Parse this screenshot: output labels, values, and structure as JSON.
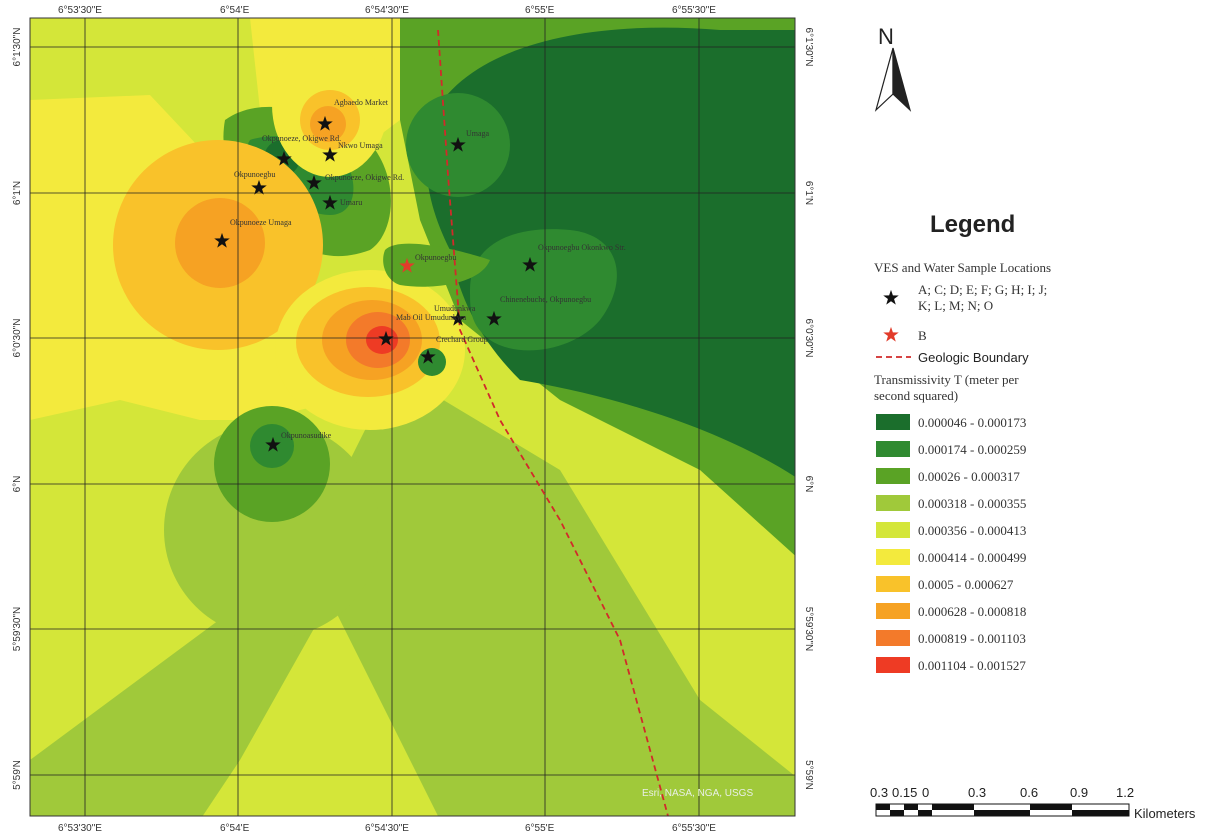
{
  "map": {
    "attribution": "Esri, NASA, NGA, USGS",
    "top_longitude_labels": [
      "6°53'30\"E",
      "6°54'E",
      "6°54'30\"E",
      "6°55'E",
      "6°55'30\"E"
    ],
    "bottom_longitude_labels": [
      "6°53'30\"E",
      "6°54'E",
      "6°54'30\"E",
      "6°55'E",
      "6°55'30\"E"
    ],
    "latitude_labels": [
      "6°1'30\"N",
      "6°1'N",
      "6°0'30\"N",
      "6°N",
      "5°59'30\"N",
      "5°59'N"
    ],
    "colors": {
      "c1": "#1b6e2c",
      "c2": "#2f8a30",
      "c3": "#5aa325",
      "c4": "#a0c93a",
      "c5": "#d4e639",
      "c6": "#f3ea3d",
      "c7": "#f9c22a",
      "c8": "#f6a223",
      "c9": "#f37a2a",
      "c10": "#ee3b24",
      "star_black": "#111111",
      "star_red": "#e23b2a",
      "boundary": "#d12a2a"
    },
    "sites": [
      {
        "label": "Agbaedo Market"
      },
      {
        "label": "Okpunoeze, Okigwe Rd."
      },
      {
        "label": "Nkwo Umaga"
      },
      {
        "label": "Okpunoegbu"
      },
      {
        "label": "Okpunoeze, Okigwe Rd."
      },
      {
        "label": "Umaru"
      },
      {
        "label": "Umaga"
      },
      {
        "label": "Okpunoeze Umaga"
      },
      {
        "label": "Okpunoegbu"
      },
      {
        "label": "Okpunoegbu Okonkwo Str."
      },
      {
        "label": "Umudunkwa"
      },
      {
        "label": "Chinenebuche, Okpunoegbu"
      },
      {
        "label": "Mab Oil Umudunkwa"
      },
      {
        "label": "Crechard Group"
      },
      {
        "label": "Okpunoasudike"
      }
    ]
  },
  "north_arrow": {
    "letter": "N"
  },
  "legend": {
    "title": "Legend",
    "section_title": "VES and Water Sample Locations",
    "black_star_label_line1": "A; C; D; E; F; G; H; I; J;",
    "black_star_label_line2": "K; L; M; N; O",
    "red_star_label": "B",
    "boundary_label": "Geologic Boundary",
    "transmissivity_title_line1": "Transmissivity T (meter per",
    "transmissivity_title_line2": "second squared)",
    "classes": [
      {
        "label": "0.000046 - 0.000173",
        "color": "#1b6e2c"
      },
      {
        "label": "0.000174 - 0.000259",
        "color": "#2f8a30"
      },
      {
        "label": "0.00026 - 0.000317",
        "color": "#5aa325"
      },
      {
        "label": "0.000318 - 0.000355",
        "color": "#a0c93a"
      },
      {
        "label": "0.000356 - 0.000413",
        "color": "#d4e639"
      },
      {
        "label": "0.000414 - 0.000499",
        "color": "#f3ea3d"
      },
      {
        "label": "0.0005 - 0.000627",
        "color": "#f9c22a"
      },
      {
        "label": "0.000628 - 0.000818",
        "color": "#f6a223"
      },
      {
        "label": "0.000819 - 0.001103",
        "color": "#f37a2a"
      },
      {
        "label": "0.001104 - 0.001527",
        "color": "#ee3b24"
      }
    ]
  },
  "scale_bar": {
    "ticks": [
      "0.3",
      "0.15",
      "0",
      "0.3",
      "0.6",
      "0.9",
      "1.2"
    ],
    "unit": "Kilometers"
  }
}
